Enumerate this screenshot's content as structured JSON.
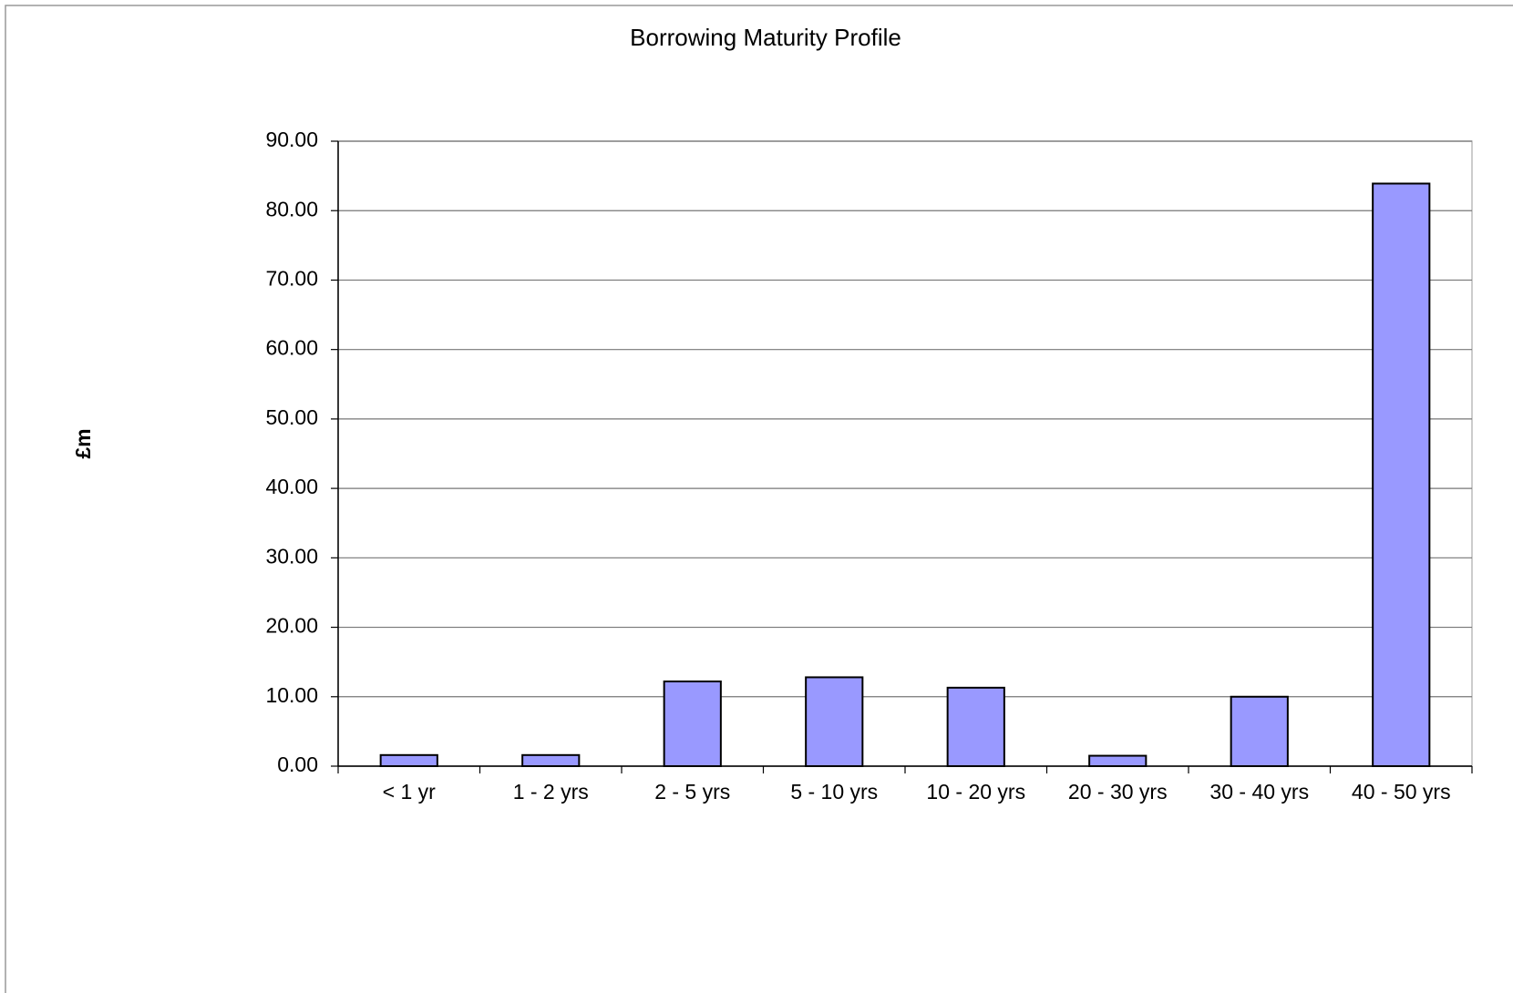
{
  "chart_data": {
    "type": "bar",
    "title": "Borrowing Maturity Profile",
    "y_label": "£m",
    "categories": [
      "< 1 yr",
      "1 - 2 yrs",
      "2 - 5 yrs",
      "5 - 10 yrs",
      "10 - 20 yrs",
      "20 - 30 yrs",
      "30 - 40 yrs",
      "40 - 50 yrs"
    ],
    "values": [
      1.6,
      1.6,
      12.2,
      12.8,
      11.3,
      1.5,
      10.0,
      83.9
    ],
    "color": "#9999ff",
    "ylim": [
      0,
      90
    ],
    "yticks": [
      {
        "value": 0,
        "label": "0.00"
      },
      {
        "value": 10,
        "label": "10.00"
      },
      {
        "value": 20,
        "label": "20.00"
      },
      {
        "value": 30,
        "label": "30.00"
      },
      {
        "value": 40,
        "label": "40.00"
      },
      {
        "value": 50,
        "label": "50.00"
      },
      {
        "value": 60,
        "label": "60.00"
      },
      {
        "value": 70,
        "label": "70.00"
      },
      {
        "value": 80,
        "label": "80.00"
      },
      {
        "value": 90,
        "label": "90.00"
      }
    ],
    "grid": true
  }
}
